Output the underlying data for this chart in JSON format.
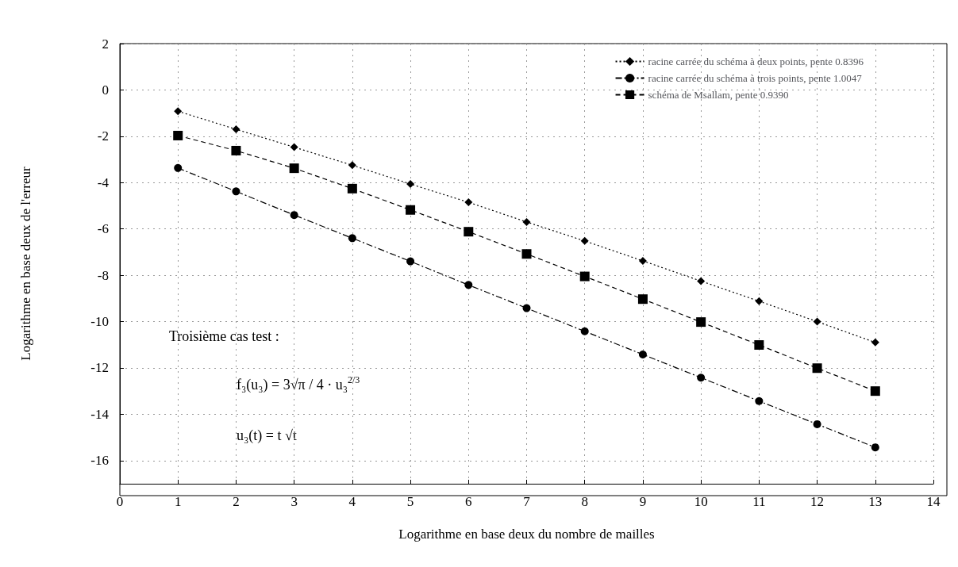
{
  "chart_data": {
    "type": "line",
    "xlabel": "Logarithme en base deux du nombre de mailles",
    "ylabel": "Logarithme en base deux de l'erreur",
    "x": [
      1,
      2,
      3,
      4,
      5,
      6,
      7,
      8,
      9,
      10,
      11,
      12,
      13
    ],
    "series": [
      {
        "name": "racine carrée du schéma à deux points, pente 0.8396",
        "color": "#000000",
        "marker": "diamond",
        "line_style": "dotted",
        "values": [
          -0.92,
          -1.7,
          -2.47,
          -3.25,
          -4.06,
          -4.85,
          -5.7,
          -6.52,
          -7.38,
          -8.25,
          -9.12,
          -10.0,
          -10.9
        ]
      },
      {
        "name": "racine carrée du schéma à trois points, pente 1.0047",
        "color": "#000000",
        "marker": "circle",
        "line_style": "dashdot",
        "values": [
          -3.37,
          -4.38,
          -5.4,
          -6.4,
          -7.4,
          -8.42,
          -9.42,
          -10.42,
          -11.42,
          -12.42,
          -13.43,
          -14.43,
          -15.43
        ]
      },
      {
        "name": "schéma de Msallam, pente 0.9390",
        "color": "#000000",
        "marker": "square",
        "line_style": "dashed",
        "values": [
          -1.97,
          -2.62,
          -3.38,
          -4.26,
          -5.18,
          -6.12,
          -7.08,
          -8.05,
          -9.03,
          -10.02,
          -11.01,
          -12.01,
          -13.0
        ]
      }
    ],
    "xlim": [
      0,
      14
    ],
    "xticks": [
      0,
      1,
      2,
      3,
      4,
      5,
      6,
      7,
      8,
      9,
      10,
      11,
      12,
      13,
      14
    ],
    "ylim": [
      -17,
      2
    ],
    "yticks": [
      -16,
      -14,
      -12,
      -10,
      -8,
      -6,
      -4,
      -2,
      0,
      2
    ],
    "grid": true,
    "legend": "top right",
    "annotations": [
      "Troisième cas test :",
      "f₃(u₃) = 3√π / 4 · u₃$^{2/3}$",
      "u₃(t) = t √t"
    ]
  }
}
